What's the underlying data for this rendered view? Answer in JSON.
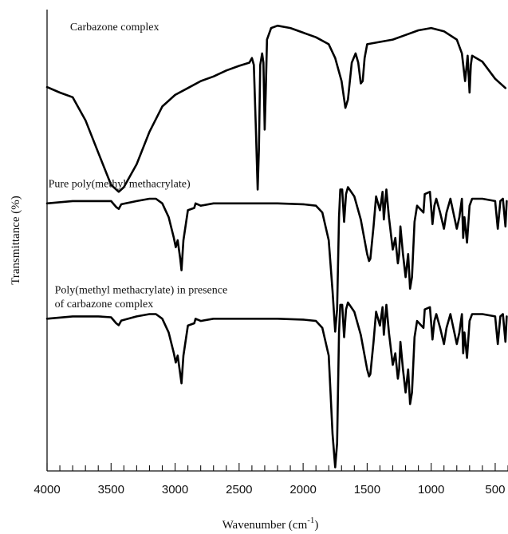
{
  "chart_data": {
    "type": "line",
    "xlabel": "Wavenumber (cm",
    "xlabel_sup": "-1",
    "xlabel_close": ")",
    "ylabel": "Transmittance (%)",
    "xlim": [
      4000,
      400
    ],
    "x_reversed": true,
    "major_ticks": [
      4000,
      3500,
      3000,
      2500,
      2000,
      1500,
      1000,
      500
    ],
    "tick_labels": [
      "4000",
      "3500",
      "3000",
      "2500",
      "2000",
      "1500",
      "1000",
      "500"
    ],
    "minor_tick_step": 100,
    "y_units": "relative transmittance, offset traces (0 = bottom of axis, 1 = top)",
    "series": [
      {
        "name": "Carbazone complex",
        "points": [
          [
            4000,
            0.832
          ],
          [
            3900,
            0.82
          ],
          [
            3800,
            0.81
          ],
          [
            3700,
            0.76
          ],
          [
            3600,
            0.69
          ],
          [
            3500,
            0.62
          ],
          [
            3440,
            0.605
          ],
          [
            3400,
            0.615
          ],
          [
            3300,
            0.665
          ],
          [
            3200,
            0.735
          ],
          [
            3100,
            0.79
          ],
          [
            3000,
            0.815
          ],
          [
            2900,
            0.83
          ],
          [
            2800,
            0.845
          ],
          [
            2700,
            0.855
          ],
          [
            2600,
            0.868
          ],
          [
            2500,
            0.878
          ],
          [
            2420,
            0.885
          ],
          [
            2400,
            0.895
          ],
          [
            2385,
            0.88
          ],
          [
            2370,
            0.75
          ],
          [
            2355,
            0.61
          ],
          [
            2345,
            0.7
          ],
          [
            2335,
            0.88
          ],
          [
            2320,
            0.905
          ],
          [
            2310,
            0.885
          ],
          [
            2300,
            0.74
          ],
          [
            2292,
            0.82
          ],
          [
            2282,
            0.935
          ],
          [
            2250,
            0.96
          ],
          [
            2200,
            0.965
          ],
          [
            2100,
            0.96
          ],
          [
            2000,
            0.95
          ],
          [
            1900,
            0.94
          ],
          [
            1800,
            0.925
          ],
          [
            1750,
            0.895
          ],
          [
            1700,
            0.845
          ],
          [
            1670,
            0.787
          ],
          [
            1650,
            0.805
          ],
          [
            1620,
            0.885
          ],
          [
            1590,
            0.905
          ],
          [
            1570,
            0.885
          ],
          [
            1550,
            0.84
          ],
          [
            1535,
            0.845
          ],
          [
            1520,
            0.895
          ],
          [
            1500,
            0.925
          ],
          [
            1400,
            0.93
          ],
          [
            1300,
            0.935
          ],
          [
            1200,
            0.945
          ],
          [
            1100,
            0.955
          ],
          [
            1000,
            0.96
          ],
          [
            900,
            0.953
          ],
          [
            800,
            0.935
          ],
          [
            760,
            0.905
          ],
          [
            735,
            0.845
          ],
          [
            715,
            0.9
          ],
          [
            700,
            0.82
          ],
          [
            690,
            0.88
          ],
          [
            680,
            0.9
          ],
          [
            600,
            0.887
          ],
          [
            500,
            0.85
          ],
          [
            420,
            0.83
          ]
        ]
      },
      {
        "name": "Pure poly(methyl methacrylate)",
        "points": [
          [
            4000,
            0.58
          ],
          [
            3800,
            0.585
          ],
          [
            3600,
            0.585
          ],
          [
            3500,
            0.585
          ],
          [
            3460,
            0.572
          ],
          [
            3440,
            0.568
          ],
          [
            3420,
            0.578
          ],
          [
            3300,
            0.585
          ],
          [
            3200,
            0.59
          ],
          [
            3150,
            0.59
          ],
          [
            3100,
            0.58
          ],
          [
            3050,
            0.55
          ],
          [
            3010,
            0.505
          ],
          [
            2995,
            0.485
          ],
          [
            2980,
            0.5
          ],
          [
            2960,
            0.46
          ],
          [
            2950,
            0.435
          ],
          [
            2935,
            0.5
          ],
          [
            2900,
            0.565
          ],
          [
            2850,
            0.57
          ],
          [
            2840,
            0.58
          ],
          [
            2800,
            0.575
          ],
          [
            2700,
            0.58
          ],
          [
            2500,
            0.58
          ],
          [
            2200,
            0.58
          ],
          [
            2000,
            0.578
          ],
          [
            1900,
            0.575
          ],
          [
            1850,
            0.56
          ],
          [
            1800,
            0.5
          ],
          [
            1770,
            0.39
          ],
          [
            1750,
            0.302
          ],
          [
            1735,
            0.35
          ],
          [
            1720,
            0.55
          ],
          [
            1710,
            0.61
          ],
          [
            1695,
            0.61
          ],
          [
            1680,
            0.54
          ],
          [
            1665,
            0.6
          ],
          [
            1650,
            0.615
          ],
          [
            1600,
            0.595
          ],
          [
            1550,
            0.545
          ],
          [
            1500,
            0.47
          ],
          [
            1485,
            0.455
          ],
          [
            1475,
            0.46
          ],
          [
            1450,
            0.53
          ],
          [
            1430,
            0.595
          ],
          [
            1400,
            0.565
          ],
          [
            1380,
            0.605
          ],
          [
            1370,
            0.545
          ],
          [
            1350,
            0.61
          ],
          [
            1330,
            0.55
          ],
          [
            1300,
            0.48
          ],
          [
            1280,
            0.505
          ],
          [
            1260,
            0.45
          ],
          [
            1250,
            0.47
          ],
          [
            1240,
            0.53
          ],
          [
            1220,
            0.47
          ],
          [
            1200,
            0.42
          ],
          [
            1180,
            0.47
          ],
          [
            1165,
            0.395
          ],
          [
            1150,
            0.42
          ],
          [
            1130,
            0.54
          ],
          [
            1110,
            0.575
          ],
          [
            1060,
            0.56
          ],
          [
            1050,
            0.6
          ],
          [
            1010,
            0.605
          ],
          [
            990,
            0.535
          ],
          [
            975,
            0.575
          ],
          [
            960,
            0.59
          ],
          [
            930,
            0.56
          ],
          [
            900,
            0.525
          ],
          [
            880,
            0.56
          ],
          [
            850,
            0.59
          ],
          [
            800,
            0.525
          ],
          [
            780,
            0.55
          ],
          [
            760,
            0.59
          ],
          [
            750,
            0.505
          ],
          [
            740,
            0.55
          ],
          [
            720,
            0.495
          ],
          [
            700,
            0.575
          ],
          [
            680,
            0.59
          ],
          [
            600,
            0.59
          ],
          [
            500,
            0.585
          ],
          [
            480,
            0.525
          ],
          [
            460,
            0.585
          ],
          [
            440,
            0.59
          ],
          [
            420,
            0.53
          ],
          [
            410,
            0.585
          ]
        ]
      },
      {
        "name": "Poly(methyl methacrylate) in presence of carbazone complex",
        "points": [
          [
            4000,
            0.33
          ],
          [
            3800,
            0.335
          ],
          [
            3600,
            0.335
          ],
          [
            3500,
            0.333
          ],
          [
            3460,
            0.32
          ],
          [
            3440,
            0.316
          ],
          [
            3420,
            0.326
          ],
          [
            3300,
            0.335
          ],
          [
            3200,
            0.34
          ],
          [
            3150,
            0.34
          ],
          [
            3100,
            0.33
          ],
          [
            3050,
            0.3
          ],
          [
            3010,
            0.255
          ],
          [
            2995,
            0.235
          ],
          [
            2980,
            0.25
          ],
          [
            2960,
            0.21
          ],
          [
            2950,
            0.19
          ],
          [
            2935,
            0.25
          ],
          [
            2900,
            0.315
          ],
          [
            2850,
            0.32
          ],
          [
            2840,
            0.33
          ],
          [
            2800,
            0.325
          ],
          [
            2700,
            0.33
          ],
          [
            2500,
            0.33
          ],
          [
            2200,
            0.33
          ],
          [
            2000,
            0.328
          ],
          [
            1900,
            0.325
          ],
          [
            1850,
            0.31
          ],
          [
            1800,
            0.25
          ],
          [
            1770,
            0.08
          ],
          [
            1750,
            0.008
          ],
          [
            1735,
            0.06
          ],
          [
            1720,
            0.3
          ],
          [
            1710,
            0.36
          ],
          [
            1695,
            0.36
          ],
          [
            1680,
            0.29
          ],
          [
            1665,
            0.35
          ],
          [
            1650,
            0.365
          ],
          [
            1600,
            0.345
          ],
          [
            1550,
            0.295
          ],
          [
            1500,
            0.22
          ],
          [
            1485,
            0.205
          ],
          [
            1475,
            0.21
          ],
          [
            1450,
            0.28
          ],
          [
            1430,
            0.345
          ],
          [
            1400,
            0.315
          ],
          [
            1380,
            0.355
          ],
          [
            1370,
            0.295
          ],
          [
            1350,
            0.36
          ],
          [
            1330,
            0.3
          ],
          [
            1300,
            0.23
          ],
          [
            1280,
            0.255
          ],
          [
            1260,
            0.2
          ],
          [
            1250,
            0.22
          ],
          [
            1240,
            0.28
          ],
          [
            1220,
            0.22
          ],
          [
            1200,
            0.17
          ],
          [
            1180,
            0.22
          ],
          [
            1165,
            0.145
          ],
          [
            1150,
            0.17
          ],
          [
            1130,
            0.29
          ],
          [
            1110,
            0.325
          ],
          [
            1060,
            0.31
          ],
          [
            1050,
            0.35
          ],
          [
            1010,
            0.355
          ],
          [
            990,
            0.285
          ],
          [
            975,
            0.325
          ],
          [
            960,
            0.34
          ],
          [
            930,
            0.31
          ],
          [
            900,
            0.275
          ],
          [
            880,
            0.31
          ],
          [
            850,
            0.34
          ],
          [
            800,
            0.275
          ],
          [
            780,
            0.3
          ],
          [
            760,
            0.34
          ],
          [
            750,
            0.255
          ],
          [
            740,
            0.3
          ],
          [
            720,
            0.245
          ],
          [
            700,
            0.325
          ],
          [
            680,
            0.34
          ],
          [
            600,
            0.34
          ],
          [
            500,
            0.335
          ],
          [
            480,
            0.275
          ],
          [
            460,
            0.335
          ],
          [
            440,
            0.34
          ],
          [
            420,
            0.28
          ],
          [
            410,
            0.335
          ]
        ]
      }
    ],
    "annotations": [
      {
        "text": "Carbazone complex",
        "at_x": 3820,
        "at_y": 0.955
      },
      {
        "text": "Pure poly(methyl methacrylate)",
        "at_x": 3990,
        "at_y": 0.615
      },
      {
        "text": "Poly(methyl methacrylate) in presence",
        "at_x": 3940,
        "at_y": 0.385
      },
      {
        "text": "of carbazone complex",
        "at_x": 3940,
        "at_y": 0.355
      }
    ],
    "grid": false,
    "legend": "none"
  }
}
